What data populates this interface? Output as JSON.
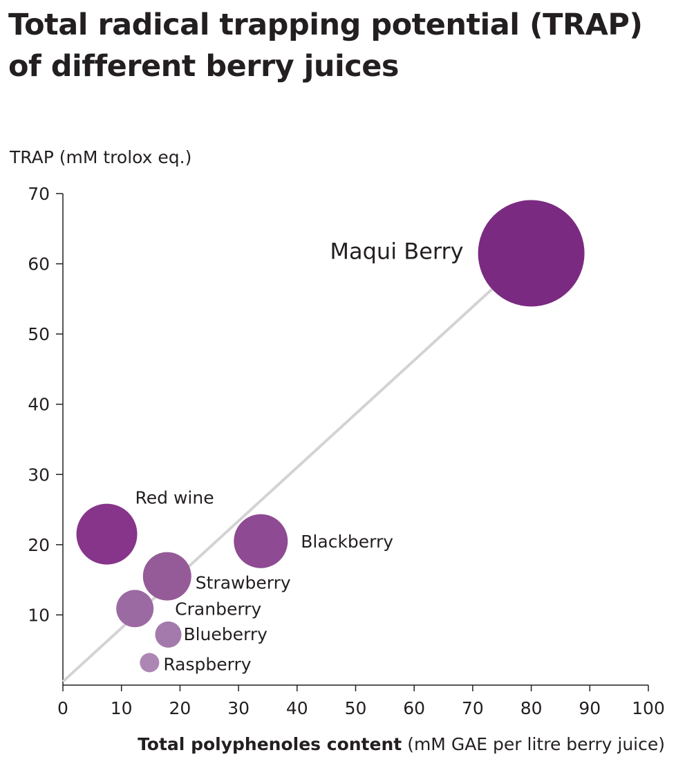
{
  "title_line1": "Total radical trapping potential (TRAP)",
  "title_line2": "of different berry juices",
  "chart_data": {
    "type": "scatter",
    "subtype": "bubble",
    "title": "Total radical trapping potential (TRAP) of different berry juices",
    "ylabel": "TRAP (mM trolox eq.)",
    "xlabel_bold": "Total polyphenoles content",
    "xlabel_rest": "(mM GAE per litre berry juice)",
    "xlim": [
      0,
      100
    ],
    "ylim": [
      0,
      70
    ],
    "xticks": [
      0,
      10,
      20,
      30,
      40,
      50,
      60,
      70,
      80,
      90,
      100
    ],
    "yticks": [
      10,
      20,
      30,
      40,
      50,
      60,
      70
    ],
    "trend_line": {
      "x": [
        0,
        80
      ],
      "y": [
        0.5,
        61.5
      ],
      "color": "#d3d3d3"
    },
    "grid": false,
    "points": [
      {
        "name": "Maqui Berry",
        "x": 80,
        "y": 61.5,
        "size": 77,
        "color": "#7b2a82"
      },
      {
        "name": "Red wine",
        "x": 7.5,
        "y": 21.5,
        "size": 44,
        "color": "#86358a"
      },
      {
        "name": "Blackberry",
        "x": 33.8,
        "y": 20.5,
        "size": 39,
        "color": "#8e4a92"
      },
      {
        "name": "Strawberry",
        "x": 17.8,
        "y": 15.5,
        "size": 35,
        "color": "#955b98"
      },
      {
        "name": "Cranberry",
        "x": 12.3,
        "y": 10.9,
        "size": 27,
        "color": "#9c6aa2"
      },
      {
        "name": "Blueberry",
        "x": 18,
        "y": 7.2,
        "size": 19,
        "color": "#a37aab"
      },
      {
        "name": "Raspberry",
        "x": 14.8,
        "y": 3.2,
        "size": 14,
        "color": "#ad87b4"
      }
    ]
  }
}
